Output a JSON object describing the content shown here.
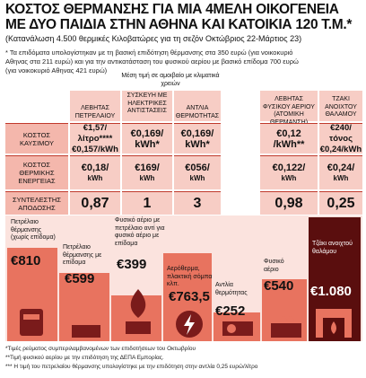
{
  "title_line1": "ΚΟΣΤΟΣ ΘΕΡΜΑΝΣΗΣ ΓΙΑ ΜΙΑ 4ΜΕΛΗ ΟΙΚΟΓΕΝΕΙΑ",
  "title_line2": "ΜΕ ΔΥΟ ΠΑΙΔΙΑ ΣΤΗΝ ΑΘΗΝΑ ΚΑΙ ΚΑΤΟΙΚΙΑ 120 Τ.Μ.*",
  "subtitle": "(Κατανάλωση 4.500 θερμικές Κιλοβατώρες για τη σεζόν Οκτώβριος 22-Μάρτιος 23)",
  "note_lines": [
    "* Τα επιδόματα υπολογίστηκαν με τη βασική επιδότηση θέρμανσης στα 350 ευρώ (για νοικοκυριό",
    "Αθηνας στα 211 ευρώ) και για την αντικατάσταση του φυσικού αερίου με βασικό επίδομα 700 ευρώ",
    "(για νοικοκυριό Αθηνας 421 ευρώ)"
  ],
  "header_mean": "Μέση τιμή σε αμοιβαίο με κλιματικά χρειών",
  "columns": [
    {
      "label": "ΛΕΒΗΤΑΣ ΠΕΤΡΕΛΑΙΟΥ",
      "cost": "€1,57/λίτρο****",
      "cost2": "€0,157/kWh",
      "thermal": "€0,18/",
      "thermal_unit": "kWh",
      "efficiency": "0,87"
    },
    {
      "label": "ΣΥΣΚΕΥΗ ΜΕ ΗΛΕΚΤΡΙΚΕΣ ΑΝΤΙΣΤΑΣΕΙΣ",
      "cost": "€0,169/",
      "cost2": "kWh*",
      "thermal": "€169/",
      "thermal_unit": "kWh",
      "efficiency": "1"
    },
    {
      "label": "ΑΝΤΛΙΑ ΘΕΡΜΟΤΗΤΑΣ",
      "cost": "€0,169/",
      "cost2": "kWh*",
      "thermal": "€056/",
      "thermal_unit": "kWh",
      "efficiency": "3"
    },
    {
      "label": "ΛΕΒΗΤΑΣ ΦΥΣΙΚΟΥ ΑΕΡΙΟΥ (ΑΤΟΜΙΚΗ ΘΕΡΜΑΝΣΗ)",
      "cost": "€0,12",
      "cost2": "/kWh**",
      "thermal": "€0,122/",
      "thermal_unit": "kWh",
      "efficiency": "0,98"
    },
    {
      "label": "ΤΖΑΚΙ ΑΝΟΙΧΤΟΥ ΘΑΛΑΜΟΥ",
      "cost": "€240/τόνος",
      "cost2": "€0,24/kWh",
      "thermal": "€0,24/",
      "thermal_unit": "kWh",
      "efficiency": "0,25"
    }
  ],
  "row_labels": {
    "cost": "ΚΟΣΤΟΣ ΚΑΥΣΙΜΟΥ",
    "thermal": "ΚΟΣΤΟΣ ΘΕΡΜΙΚΗΣ ΕΝΕΡΓΕΙΑΣ",
    "efficiency": "ΣΥΝΤΕΛΕΣΤΗΣ ΑΠΟΔΟΣΗΣ"
  },
  "bars": [
    {
      "label": "Πετρέλαιο θέρμανσης (χωρίς επίδομα)",
      "price": "€810",
      "level": 0.75
    },
    {
      "label": "Πετρέλαιο θέρμανσης με επίδομα",
      "price": "€599",
      "level": 0.55
    },
    {
      "label": "Φυσικό αέριο με πετρέλαιο αντί για φυσικό αέριο με επίδομα",
      "price": "€399",
      "level": 0.37
    },
    {
      "label": "Αερόθερμα, πλακτική σόμπα κλπ.",
      "price": "€763,5",
      "level": 0.71
    },
    {
      "label": "Αντλία θερμότητας",
      "price": "€252",
      "level": 0.23
    },
    {
      "label": "Φυσικό αέριο",
      "price": "€540",
      "level": 0.5
    },
    {
      "label": "Τζάκι ανοιχτού θαλάμου",
      "price": "€1.080",
      "level": 1.0
    }
  ],
  "footnotes": [
    "*Τιμές ρεύματος συμπεριλαμβανομένων των επιδοτήσεων του Οκτωβρίου",
    "**Τιμή φυσικού αερίου με την επιδότηση της ΔΕΠΑ Εμπορίας.",
    "*** Η τιμή του πετρελαίου θέρμανσης υπολογίστηκε με την επιδότηση στην αντλία 0,25 ευρώ/λίτρο"
  ],
  "colors": {
    "pink": "#f7cdc5",
    "bar": "#e8735f",
    "dark": "#5a0e0e",
    "red": "#c0392b"
  }
}
